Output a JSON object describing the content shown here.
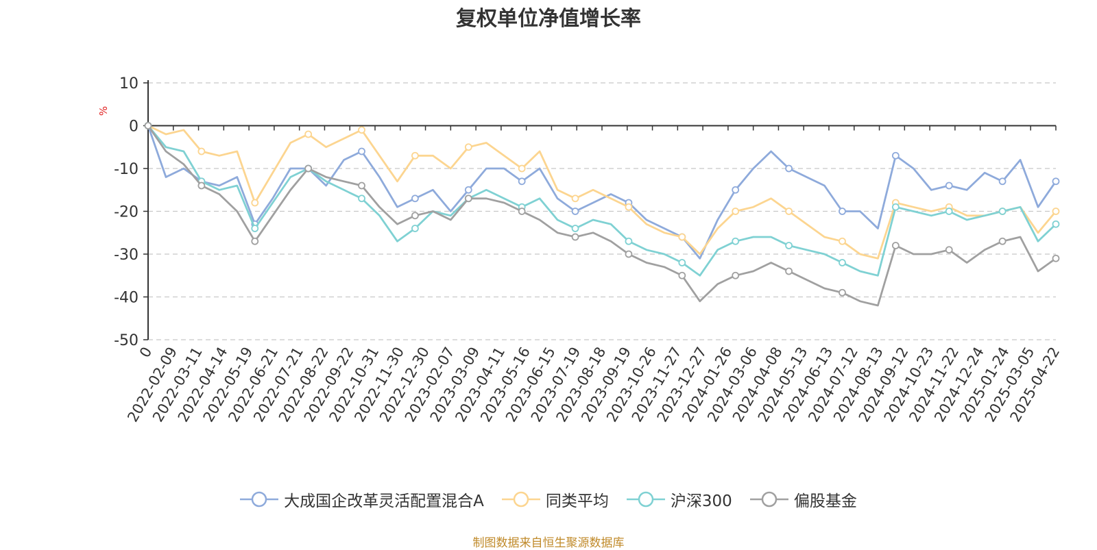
{
  "chart_data": {
    "type": "line",
    "title": "复权单位净值增长率",
    "ylabel": "%",
    "ylim": [
      -50,
      10
    ],
    "yticks": [
      10,
      0,
      -10,
      -20,
      -30,
      -40,
      -50
    ],
    "grid": true,
    "legend_position": "bottom",
    "x_tick_labels": [
      "0",
      "2022-02-09",
      "2022-03-11",
      "2022-04-14",
      "2022-05-19",
      "2022-06-21",
      "2022-07-21",
      "2022-08-22",
      "2022-09-22",
      "2022-10-31",
      "2022-11-30",
      "2022-12-30",
      "2023-02-07",
      "2023-03-09",
      "2023-04-11",
      "2023-05-16",
      "2023-06-15",
      "2023-07-19",
      "2023-08-18",
      "2023-09-19",
      "2023-10-26",
      "2023-11-27",
      "2023-12-27",
      "2024-01-26",
      "2024-03-06",
      "2024-04-08",
      "2024-05-13",
      "2024-06-13",
      "2024-07-12",
      "2024-08-13",
      "2024-09-12",
      "2024-10-23",
      "2024-11-22",
      "2024-12-24",
      "2025-01-24",
      "2025-03-05",
      "2025-04-22"
    ],
    "series": [
      {
        "name": "大成国企改革灵活配置混合A",
        "color": "#8eaadb",
        "values": [
          0,
          -12,
          -10,
          -13,
          -14,
          -12,
          -23,
          -17,
          -10,
          -10,
          -14,
          -8,
          -6,
          -12,
          -19,
          -17,
          -15,
          -20,
          -15,
          -10,
          -10,
          -13,
          -10,
          -17,
          -20,
          -18,
          -16,
          -18,
          -22,
          -24,
          -26,
          -31,
          -22,
          -15,
          -10,
          -6,
          -10,
          -12,
          -14,
          -20,
          -20,
          -24,
          -7,
          -10,
          -15,
          -14,
          -15,
          -11,
          -13,
          -8,
          -19,
          -13
        ]
      },
      {
        "name": "同类平均",
        "color": "#fcd590",
        "values": [
          0,
          -2,
          -1,
          -6,
          -7,
          -6,
          -18,
          -11,
          -4,
          -2,
          -5,
          -3,
          -1,
          -7,
          -13,
          -7,
          -7,
          -10,
          -5,
          -4,
          -7,
          -10,
          -6,
          -15,
          -17,
          -15,
          -17,
          -19,
          -23,
          -25,
          -26,
          -30,
          -24,
          -20,
          -19,
          -17,
          -20,
          -23,
          -26,
          -27,
          -30,
          -31,
          -18,
          -19,
          -20,
          -19,
          -21,
          -21,
          -20,
          -19,
          -25,
          -20
        ]
      },
      {
        "name": "沪深300",
        "color": "#7fd1d3",
        "values": [
          0,
          -5,
          -6,
          -13,
          -15,
          -14,
          -24,
          -18,
          -12,
          -10,
          -13,
          -15,
          -17,
          -21,
          -27,
          -24,
          -20,
          -21,
          -17,
          -15,
          -17,
          -19,
          -17,
          -22,
          -24,
          -22,
          -23,
          -27,
          -29,
          -30,
          -32,
          -35,
          -29,
          -27,
          -26,
          -26,
          -28,
          -29,
          -30,
          -32,
          -34,
          -35,
          -19,
          -20,
          -21,
          -20,
          -22,
          -21,
          -20,
          -19,
          -27,
          -23
        ]
      },
      {
        "name": "偏股基金",
        "color": "#a0a0a0",
        "values": [
          0,
          -6,
          -9,
          -14,
          -16,
          -20,
          -27,
          -21,
          -15,
          -10,
          -12,
          -13,
          -14,
          -19,
          -23,
          -21,
          -20,
          -22,
          -17,
          -17,
          -18,
          -20,
          -22,
          -25,
          -26,
          -25,
          -27,
          -30,
          -32,
          -33,
          -35,
          -41,
          -37,
          -35,
          -34,
          -32,
          -34,
          -36,
          -38,
          -39,
          -41,
          -42,
          -28,
          -30,
          -30,
          -29,
          -32,
          -29,
          -27,
          -26,
          -34,
          -31
        ]
      }
    ]
  },
  "legend": {
    "items": [
      {
        "label": "大成国企改革灵活配置混合A",
        "color": "#8eaadb"
      },
      {
        "label": "同类平均",
        "color": "#fcd590"
      },
      {
        "label": "沪深300",
        "color": "#7fd1d3"
      },
      {
        "label": "偏股基金",
        "color": "#a0a0a0"
      }
    ]
  },
  "source_note": "制图数据来自恒生聚源数据库"
}
